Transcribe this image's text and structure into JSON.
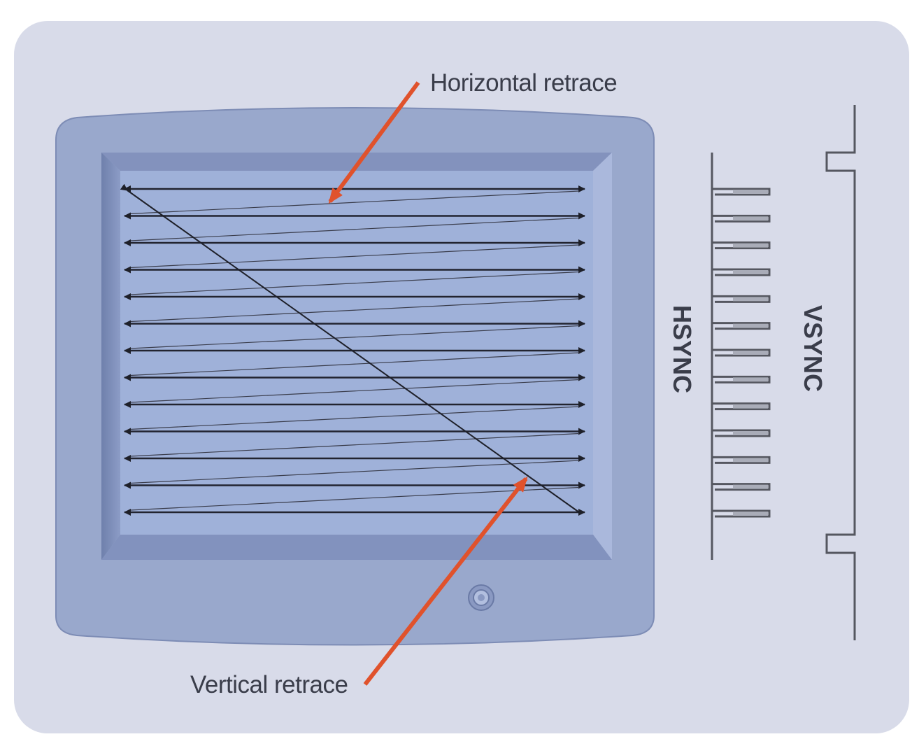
{
  "labels": {
    "horizontal_retrace": "Horizontal retrace",
    "vertical_retrace": "Vertical retrace",
    "hsync": "HSYNC",
    "vsync": "VSYNC"
  },
  "scan": {
    "line_count": 13
  },
  "hsync": {
    "pulse_count": 13
  },
  "colors": {
    "background_panel": "#d8dbe9",
    "monitor_bezel": "#99a8cc",
    "screen": "#9fb1d9",
    "scan_line": "#222430",
    "retrace_arrow": "#e0522c",
    "sync_signal": "#555760"
  },
  "icons": {
    "power_button": "power-button-icon"
  }
}
